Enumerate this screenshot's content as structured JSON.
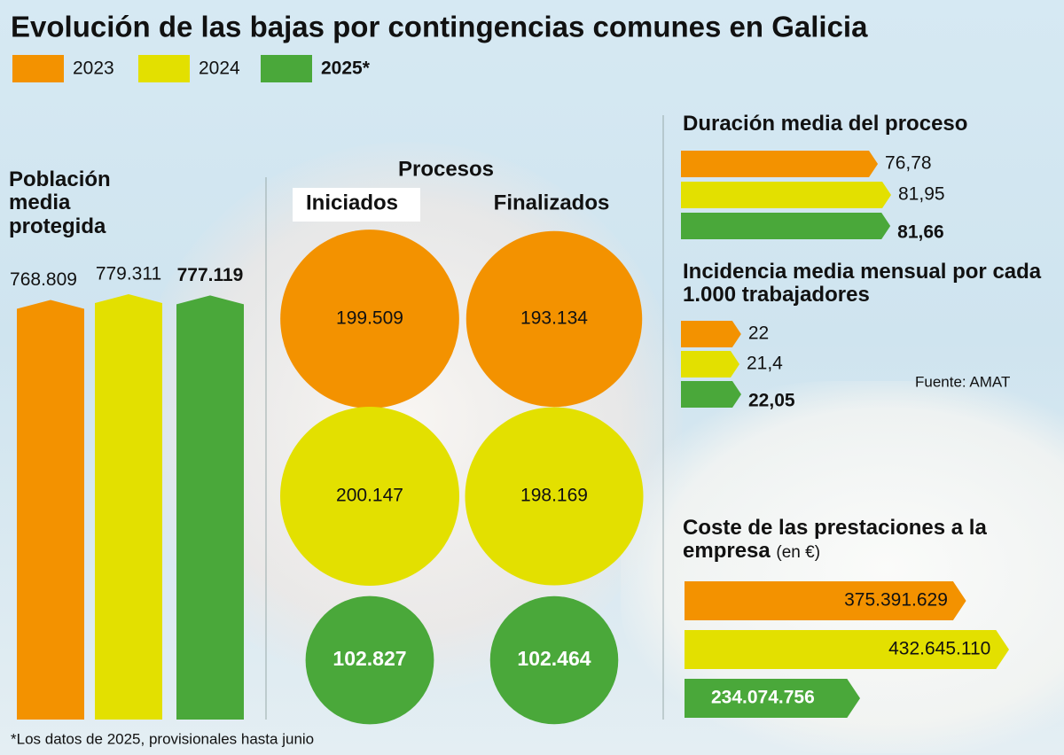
{
  "title": "Evolución de las bajas por contingencias comunes en Galicia",
  "legend": [
    {
      "name": "2023",
      "color": "#f39200"
    },
    {
      "name": "2024",
      "color": "#e3e000"
    },
    {
      "name": "2025*",
      "color": "#4aa83a"
    }
  ],
  "footnote": "*Los datos de 2025, provisionales hasta junio",
  "source": "Fuente: AMAT",
  "chart_data": [
    {
      "type": "bar",
      "title": "Población media protegida",
      "values": [
        768809,
        779311,
        777119
      ],
      "value_labels": [
        "768.809",
        "779.311",
        "777.119"
      ]
    },
    {
      "type": "bubble",
      "title": "Procesos",
      "series": [
        {
          "name": "Iniciados",
          "values": [
            199509,
            200147,
            102827
          ],
          "value_labels": [
            "199.509",
            "200.147",
            "102.827"
          ]
        },
        {
          "name": "Finalizados",
          "values": [
            193134,
            198169,
            102464
          ],
          "value_labels": [
            "193.134",
            "198.169",
            "102.464"
          ]
        }
      ]
    },
    {
      "type": "hbar",
      "title": "Duración media del proceso",
      "values": [
        76.78,
        81.95,
        81.66
      ],
      "value_labels": [
        "76,78",
        "81,95",
        "81,66"
      ]
    },
    {
      "type": "hbar",
      "title": "Incidencia media mensual por cada 1.000 trabajadores",
      "values": [
        22,
        21.4,
        22.05
      ],
      "value_labels": [
        "22",
        "21,4",
        "22,05"
      ]
    },
    {
      "type": "hbar",
      "title": "Coste de las prestaciones a la empresa",
      "subtitle": "(en €)",
      "values": [
        375391629,
        432645110,
        234074756
      ],
      "value_labels": [
        "375.391.629",
        "432.645.110",
        "234.074.756"
      ]
    }
  ]
}
